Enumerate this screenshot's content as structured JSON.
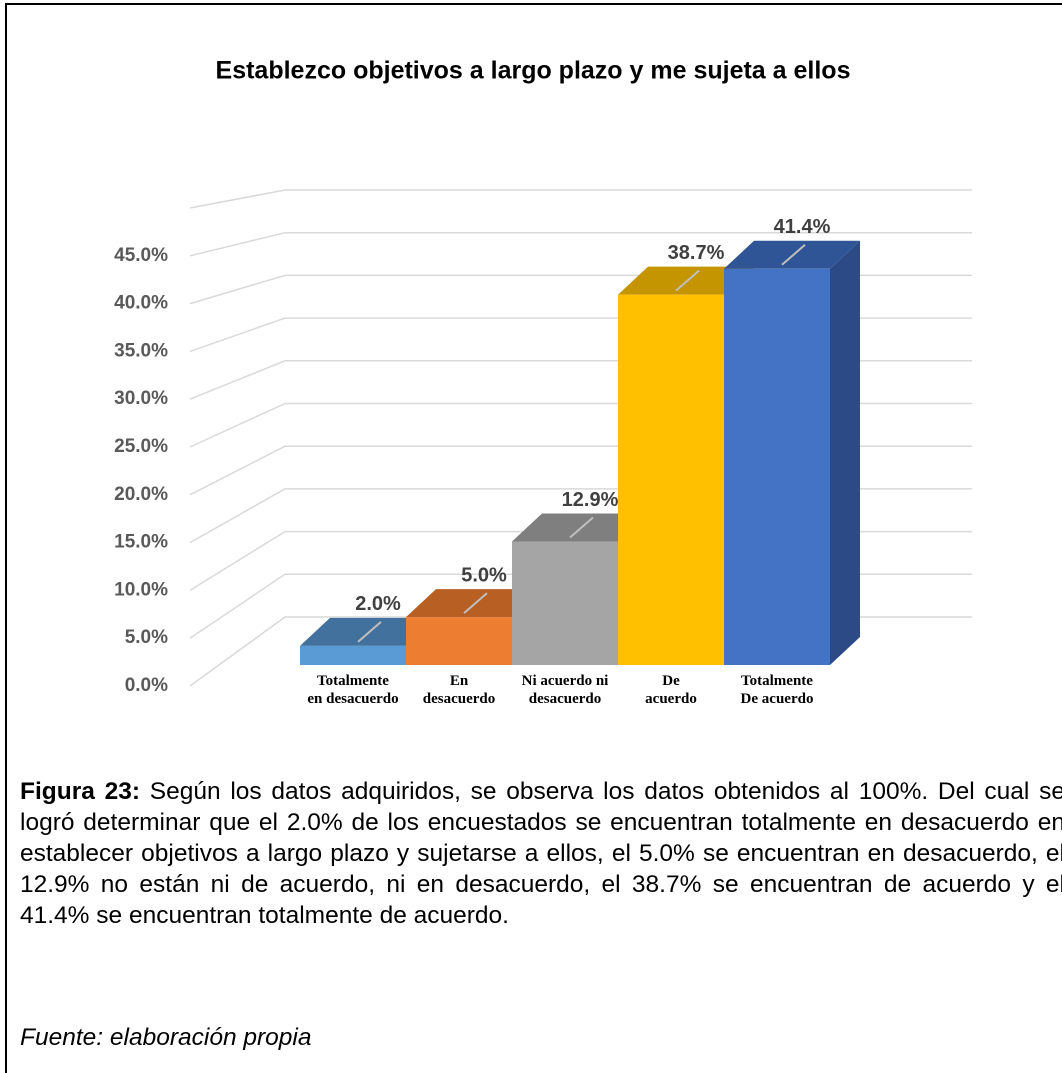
{
  "chart_data": {
    "type": "bar3d",
    "title": "Establezco objetivos a largo plazo y me sujeta a ellos",
    "categories": [
      "Totalmente\nen desacuerdo",
      "En\ndesacuerdo",
      "Ni acuerdo ni\ndesacuerdo",
      "De\nacuerdo",
      "Totalmente\nDe acuerdo"
    ],
    "values": [
      2.0,
      5.0,
      12.9,
      38.7,
      41.4
    ],
    "value_labels": [
      "2.0%",
      "5.0%",
      "12.9%",
      "38.7%",
      "41.4%"
    ],
    "colors": [
      "#5b9bd5",
      "#ed7d31",
      "#a5a5a5",
      "#ffc000",
      "#4472c4"
    ],
    "top_colors": [
      "#41719c",
      "#b85f24",
      "#7f7f7f",
      "#c59500",
      "#2f5597"
    ],
    "side_colors": [
      "#41719c",
      "#b85f24",
      "#7f7f7f",
      "#c59500",
      "#2b4a86"
    ],
    "ylim": [
      0,
      50
    ],
    "yticks": [
      {
        "value": 0,
        "label": "0.0%"
      },
      {
        "value": 5,
        "label": "5.0%"
      },
      {
        "value": 10,
        "label": "10.0%"
      },
      {
        "value": 15,
        "label": "15.0%"
      },
      {
        "value": 20,
        "label": "20.0%"
      },
      {
        "value": 25,
        "label": "25.0%"
      },
      {
        "value": 30,
        "label": "30.0%"
      },
      {
        "value": 35,
        "label": "35.0%"
      },
      {
        "value": 40,
        "label": "40.0%"
      },
      {
        "value": 45,
        "label": "45.0%"
      }
    ],
    "grid": true
  },
  "caption": {
    "label": "Figura 23:",
    "text": " Según los datos adquiridos, se observa los datos obtenidos al 100%. Del cual se logró determinar que el 2.0% de los encuestados se encuentran totalmente en desacuerdo en establecer objetivos a largo plazo y sujetarse a ellos, el 5.0% se encuentran en desacuerdo, el 12.9% no están ni de acuerdo, ni en desacuerdo, el 38.7% se encuentran de acuerdo y el 41.4% se encuentran totalmente de acuerdo.",
    "source": "Fuente: elaboración propia"
  }
}
